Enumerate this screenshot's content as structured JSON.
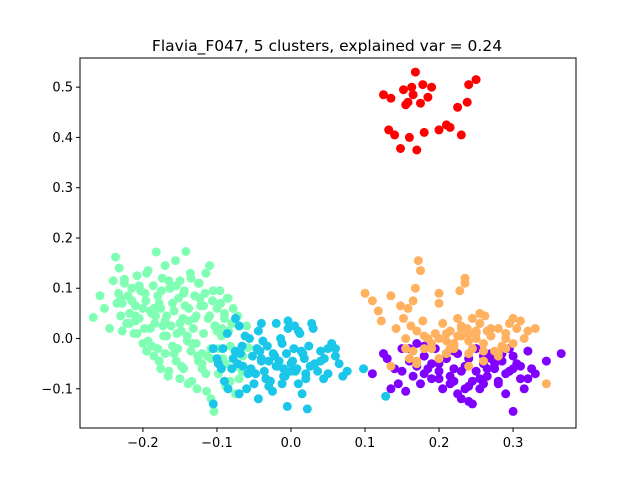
{
  "chart_data": {
    "type": "scatter",
    "title": "Flavia_F047, 5 clusters, explained var = 0.24",
    "xlabel": "",
    "ylabel": "",
    "xlim": [
      -0.285,
      0.385
    ],
    "ylim": [
      -0.178,
      0.558
    ],
    "xticks": [
      -0.2,
      -0.1,
      0.0,
      0.1,
      0.2,
      0.3
    ],
    "xtick_labels": [
      "−0.2",
      "−0.1",
      "0.0",
      "0.1",
      "0.2",
      "0.3"
    ],
    "yticks": [
      -0.1,
      0.0,
      0.1,
      0.2,
      0.3,
      0.4,
      0.5
    ],
    "ytick_labels": [
      "−0.1",
      "0.0",
      "0.1",
      "0.2",
      "0.3",
      "0.4",
      "0.5"
    ],
    "grid": false,
    "legend": "none",
    "series": [
      {
        "color": "#80ffb4",
        "x": [
          -0.267,
          -0.258,
          -0.252,
          -0.245,
          -0.24,
          -0.237,
          -0.233,
          -0.23,
          -0.228,
          -0.225,
          -0.222,
          -0.22,
          -0.218,
          -0.215,
          -0.212,
          -0.21,
          -0.208,
          -0.205,
          -0.203,
          -0.2,
          -0.198,
          -0.196,
          -0.193,
          -0.19,
          -0.188,
          -0.186,
          -0.184,
          -0.182,
          -0.18,
          -0.178,
          -0.176,
          -0.174,
          -0.172,
          -0.17,
          -0.168,
          -0.166,
          -0.164,
          -0.162,
          -0.16,
          -0.158,
          -0.156,
          -0.154,
          -0.152,
          -0.15,
          -0.148,
          -0.146,
          -0.144,
          -0.142,
          -0.14,
          -0.138,
          -0.136,
          -0.134,
          -0.132,
          -0.13,
          -0.128,
          -0.126,
          -0.124,
          -0.122,
          -0.12,
          -0.118,
          -0.116,
          -0.114,
          -0.112,
          -0.11,
          -0.108,
          -0.106,
          -0.104,
          -0.102,
          -0.1,
          -0.098,
          -0.096,
          -0.094,
          -0.092,
          -0.09,
          -0.088,
          -0.086,
          -0.084,
          -0.082,
          -0.08,
          -0.078,
          -0.076,
          -0.074,
          -0.072,
          -0.07,
          -0.065,
          -0.06,
          -0.075,
          -0.085,
          -0.095,
          -0.105,
          -0.115,
          -0.125,
          -0.135,
          -0.145,
          -0.155,
          -0.165,
          -0.175,
          -0.185,
          -0.195,
          -0.205,
          -0.215,
          -0.225,
          -0.19,
          -0.17,
          -0.15,
          -0.13,
          -0.11,
          -0.18,
          -0.16,
          -0.14,
          -0.12,
          -0.1,
          -0.2,
          -0.21,
          -0.23,
          -0.235,
          -0.17,
          -0.155,
          -0.145,
          -0.135,
          -0.125,
          -0.115,
          -0.165,
          -0.185,
          -0.195,
          -0.208,
          -0.218,
          -0.228,
          -0.188,
          -0.178,
          -0.168,
          -0.158,
          -0.148,
          -0.138,
          -0.128,
          -0.118,
          -0.108,
          -0.098,
          -0.088,
          -0.197,
          -0.183,
          -0.163,
          -0.143,
          -0.123,
          -0.103,
          -0.193,
          -0.173,
          -0.153,
          -0.133,
          -0.113,
          -0.093,
          -0.139,
          -0.127,
          -0.108,
          -0.082,
          -0.066,
          -0.058,
          -0.09,
          -0.12,
          -0.15,
          -0.176,
          -0.21,
          -0.232
        ],
        "y": [
          0.042,
          0.085,
          0.06,
          0.02,
          0.115,
          0.162,
          0.09,
          0.045,
          0.07,
          0.118,
          0.03,
          0.085,
          0.05,
          0.1,
          0.01,
          0.065,
          0.125,
          0.04,
          0.095,
          -0.01,
          0.02,
          0.075,
          0.135,
          0.055,
          -0.015,
          0.105,
          0.03,
          0.172,
          0.085,
          -0.045,
          0.06,
          0.12,
          0.005,
          0.145,
          0.045,
          -0.075,
          0.1,
          0.025,
          0.07,
          -0.03,
          0.155,
          0.01,
          0.08,
          0.115,
          -0.055,
          0.04,
          0.095,
          0.173,
          -0.005,
          0.06,
          0.13,
          -0.085,
          0.02,
          0.085,
          0.045,
          -0.035,
          0.11,
          0.065,
          -0.06,
          0.01,
          0.09,
          -0.105,
          0.04,
          0.145,
          -0.02,
          0.075,
          -0.145,
          0.025,
          0.06,
          -0.07,
          0.095,
          0.005,
          -0.04,
          0.05,
          -0.095,
          0.08,
          0.015,
          -0.015,
          0.03,
          0.06,
          -0.025,
          -0.055,
          0.045,
          -0.08,
          -0.035,
          0.025,
          -0.11,
          0.08,
          0.07,
          0.095,
          0.13,
          0.11,
          0.12,
          0.09,
          0.105,
          0.115,
          0.095,
          0.06,
          0.13,
          0.105,
          0.075,
          0.11,
          0.02,
          0.035,
          0.03,
          0.04,
          0.045,
          -0.02,
          -0.015,
          0.005,
          -0.03,
          0.015,
          0.06,
          0.035,
          0.08,
          0.07,
          -0.03,
          -0.045,
          -0.06,
          -0.025,
          -0.045,
          -0.07,
          -0.065,
          -0.035,
          -0.025,
          0.01,
          0.03,
          0.015,
          0.05,
          0.07,
          0.005,
          0.055,
          0.015,
          0.035,
          -0.01,
          0.065,
          -0.04,
          -0.02,
          -0.05,
          0.09,
          0.045,
          0.1,
          0.065,
          0.08,
          0.025,
          -0.005,
          0.025,
          -0.02,
          -0.01,
          -0.035,
          0.02,
          -0.09,
          -0.1,
          -0.12,
          -0.085,
          -0.065,
          -0.018,
          0.04,
          -0.05,
          -0.08,
          -0.06,
          0.045,
          0.14
        ]
      },
      {
        "color": "#1ac7e8",
        "x": [
          -0.105,
          -0.098,
          -0.092,
          -0.086,
          -0.08,
          -0.075,
          -0.07,
          -0.065,
          -0.06,
          -0.056,
          -0.052,
          -0.048,
          -0.044,
          -0.04,
          -0.036,
          -0.032,
          -0.028,
          -0.024,
          -0.02,
          -0.016,
          -0.012,
          -0.008,
          -0.004,
          0.0,
          0.004,
          0.008,
          0.012,
          0.016,
          0.02,
          0.024,
          0.028,
          0.032,
          0.036,
          0.04,
          0.045,
          0.05,
          0.055,
          0.06,
          0.065,
          0.07,
          -0.09,
          -0.078,
          -0.066,
          -0.054,
          -0.042,
          -0.03,
          -0.018,
          -0.006,
          0.006,
          0.018,
          -0.085,
          -0.072,
          -0.058,
          -0.046,
          -0.034,
          -0.022,
          -0.01,
          0.002,
          0.014,
          0.026,
          -0.07,
          -0.05,
          -0.03,
          -0.01,
          0.01,
          -0.062,
          -0.038,
          -0.014,
          0.01,
          0.03,
          0.05,
          -0.04,
          -0.02,
          0.0,
          0.02,
          0.04,
          -0.1,
          -0.094,
          -0.068,
          -0.044,
          -0.025,
          -0.005,
          0.022,
          0.044,
          0.076,
          0.098,
          0.128,
          -0.075,
          -0.004,
          0.005,
          -0.04,
          0.06,
          -0.105,
          -0.028,
          -0.012,
          0.015
        ],
        "y": [
          -0.13,
          -0.05,
          -0.02,
          0.01,
          -0.06,
          -0.025,
          0.025,
          -0.055,
          -0.1,
          0.0,
          -0.035,
          -0.07,
          0.015,
          -0.04,
          -0.065,
          -0.015,
          -0.085,
          -0.03,
          0.03,
          -0.045,
          -0.01,
          -0.075,
          0.02,
          -0.05,
          -0.02,
          -0.06,
          0.01,
          -0.03,
          -0.08,
          -0.015,
          0.03,
          -0.05,
          -0.065,
          -0.025,
          -0.04,
          -0.07,
          -0.01,
          -0.035,
          -0.05,
          -0.075,
          -0.085,
          -0.04,
          -0.015,
          -0.06,
          -0.025,
          -0.045,
          -0.055,
          -0.03,
          -0.065,
          -0.04,
          -0.1,
          -0.05,
          -0.07,
          -0.02,
          -0.08,
          -0.035,
          -0.06,
          -0.045,
          -0.025,
          -0.055,
          -0.11,
          -0.09,
          -0.095,
          -0.075,
          -0.09,
          0.005,
          -0.005,
          0.0,
          0.015,
          0.02,
          -0.02,
          -0.045,
          -0.055,
          -0.065,
          -0.07,
          -0.045,
          -0.04,
          -0.06,
          -0.03,
          -0.12,
          -0.105,
          -0.135,
          -0.14,
          -0.08,
          -0.065,
          -0.06,
          -0.115,
          0.04,
          0.035,
          0.025,
          0.03,
          -0.02,
          -0.02,
          -0.085,
          -0.09,
          -0.11
        ]
      },
      {
        "color": "#8000ff",
        "x": [
          0.11,
          0.125,
          0.135,
          0.14,
          0.145,
          0.15,
          0.155,
          0.16,
          0.165,
          0.17,
          0.175,
          0.18,
          0.185,
          0.19,
          0.195,
          0.2,
          0.205,
          0.21,
          0.215,
          0.22,
          0.225,
          0.23,
          0.235,
          0.24,
          0.245,
          0.25,
          0.255,
          0.26,
          0.265,
          0.27,
          0.275,
          0.28,
          0.285,
          0.29,
          0.295,
          0.3,
          0.305,
          0.31,
          0.315,
          0.32,
          0.325,
          0.33,
          0.345,
          0.365,
          0.16,
          0.18,
          0.2,
          0.22,
          0.24,
          0.26,
          0.28,
          0.3,
          0.17,
          0.19,
          0.21,
          0.23,
          0.25,
          0.27,
          0.29,
          0.31,
          0.215,
          0.235,
          0.255,
          0.275,
          0.295,
          0.225,
          0.245,
          0.265,
          0.285,
          0.15,
          0.13,
          0.3,
          0.32,
          0.24,
          0.26,
          0.2,
          0.22,
          0.18
        ],
        "y": [
          -0.07,
          -0.03,
          -0.1,
          -0.06,
          -0.09,
          -0.065,
          -0.105,
          -0.045,
          -0.075,
          -0.055,
          -0.09,
          -0.035,
          -0.06,
          -0.08,
          -0.02,
          -0.05,
          -0.1,
          -0.04,
          -0.075,
          -0.06,
          -0.03,
          -0.12,
          -0.055,
          -0.04,
          -0.085,
          -0.065,
          -0.1,
          -0.05,
          -0.075,
          -0.03,
          -0.06,
          -0.09,
          -0.045,
          -0.11,
          -0.065,
          -0.145,
          -0.05,
          -0.08,
          -0.1,
          -0.025,
          -0.06,
          -0.07,
          -0.045,
          -0.03,
          -0.02,
          -0.07,
          -0.08,
          -0.085,
          -0.095,
          -0.09,
          -0.085,
          -0.06,
          -0.01,
          -0.05,
          -0.03,
          -0.065,
          -0.02,
          -0.04,
          -0.07,
          -0.055,
          -0.09,
          -0.1,
          -0.08,
          -0.05,
          -0.02,
          -0.11,
          -0.13,
          -0.06,
          -0.03,
          -0.02,
          -0.04,
          -0.035,
          -0.08,
          -0.125,
          -0.035,
          -0.065,
          -0.025,
          -0.015
        ]
      },
      {
        "color": "#ffb160",
        "x": [
          0.1,
          0.11,
          0.118,
          0.122,
          0.135,
          0.142,
          0.148,
          0.152,
          0.155,
          0.158,
          0.162,
          0.165,
          0.168,
          0.17,
          0.172,
          0.175,
          0.178,
          0.18,
          0.185,
          0.19,
          0.195,
          0.2,
          0.205,
          0.21,
          0.215,
          0.22,
          0.225,
          0.23,
          0.235,
          0.24,
          0.245,
          0.25,
          0.255,
          0.26,
          0.265,
          0.27,
          0.275,
          0.28,
          0.285,
          0.29,
          0.295,
          0.3,
          0.305,
          0.31,
          0.315,
          0.32,
          0.33,
          0.345,
          0.16,
          0.17,
          0.18,
          0.2,
          0.21,
          0.22,
          0.23,
          0.24,
          0.25,
          0.26,
          0.27,
          0.28,
          0.29,
          0.3,
          0.19,
          0.21,
          0.23,
          0.25,
          0.27,
          0.29,
          0.2,
          0.22,
          0.24,
          0.26,
          0.28,
          0.235,
          0.245,
          0.255,
          0.215,
          0.225,
          0.24,
          0.165,
          0.17,
          0.135,
          0.155,
          0.228,
          0.238,
          0.262,
          0.2
        ],
        "y": [
          0.09,
          0.075,
          0.055,
          0.035,
          0.085,
          0.02,
          0.065,
          0.04,
          0.0,
          0.06,
          0.025,
          0.075,
          0.1,
          0.015,
          0.155,
          0.135,
          0.035,
          0.005,
          0.0,
          -0.02,
          0.01,
          0.07,
          0.03,
          -0.005,
          0.015,
          -0.01,
          0.04,
          0.02,
          0.12,
          0.01,
          -0.02,
          0.0,
          0.03,
          -0.01,
          0.015,
          0.005,
          -0.025,
          0.02,
          -0.015,
          0.0,
          0.03,
          -0.01,
          0.02,
          0.035,
          0.0,
          0.015,
          0.02,
          -0.09,
          -0.04,
          -0.05,
          -0.02,
          0.0,
          -0.03,
          -0.015,
          0.005,
          -0.005,
          0.01,
          -0.025,
          0.005,
          -0.03,
          0.01,
          0.04,
          -0.01,
          0.01,
          0.025,
          0.015,
          0.02,
          -0.02,
          -0.04,
          -0.02,
          -0.03,
          -0.045,
          -0.035,
          0.11,
          0.04,
          0.05,
          -0.02,
          0.005,
          -0.055,
          -0.025,
          -0.045,
          -0.055,
          -0.02,
          0.095,
          0.02,
          0.045,
          0.09
        ]
      },
      {
        "color": "#ff0000",
        "x": [
          0.125,
          0.132,
          0.135,
          0.14,
          0.148,
          0.152,
          0.155,
          0.158,
          0.16,
          0.163,
          0.165,
          0.168,
          0.17,
          0.175,
          0.178,
          0.18,
          0.185,
          0.19,
          0.2,
          0.21,
          0.215,
          0.225,
          0.23,
          0.238,
          0.24,
          0.25
        ],
        "y": [
          0.485,
          0.415,
          0.478,
          0.405,
          0.378,
          0.495,
          0.465,
          0.47,
          0.4,
          0.5,
          0.485,
          0.53,
          0.375,
          0.468,
          0.505,
          0.41,
          0.48,
          0.5,
          0.415,
          0.425,
          0.42,
          0.46,
          0.405,
          0.47,
          0.505,
          0.515
        ]
      }
    ]
  }
}
